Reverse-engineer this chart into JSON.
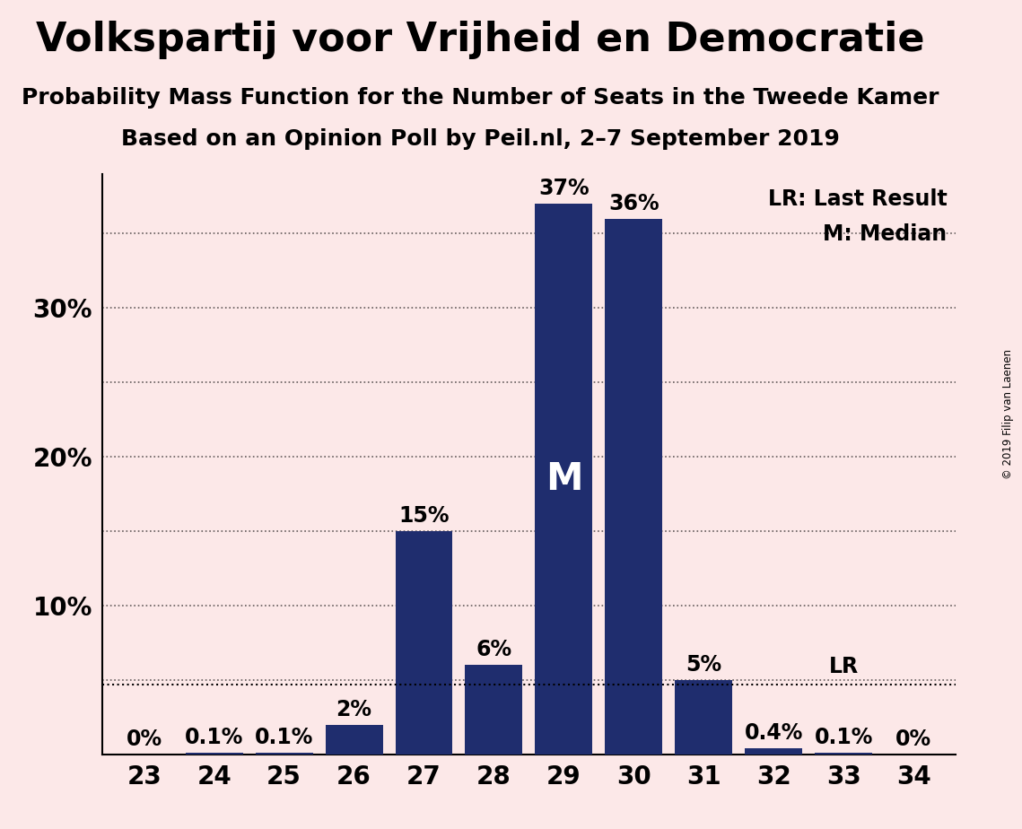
{
  "title": "Volkspartij voor Vrijheid en Democratie",
  "subtitle1": "Probability Mass Function for the Number of Seats in the Tweede Kamer",
  "subtitle2": "Based on an Opinion Poll by Peil.nl, 2–7 September 2019",
  "copyright": "© 2019 Filip van Laenen",
  "categories": [
    23,
    24,
    25,
    26,
    27,
    28,
    29,
    30,
    31,
    32,
    33,
    34
  ],
  "values": [
    0.0,
    0.1,
    0.1,
    2.0,
    15.0,
    6.0,
    37.0,
    36.0,
    5.0,
    0.4,
    0.1,
    0.0
  ],
  "labels": [
    "0%",
    "0.1%",
    "0.1%",
    "2%",
    "15%",
    "6%",
    "37%",
    "36%",
    "5%",
    "0.4%",
    "0.1%",
    "0%"
  ],
  "bar_color": "#1f2d6e",
  "background_color": "#fce8e8",
  "ylim": [
    0,
    39
  ],
  "ylabel_ticks": [
    10,
    20,
    30
  ],
  "ylabel_labels": [
    "10%",
    "20%",
    "30%"
  ],
  "grid_yticks": [
    5,
    10,
    15,
    20,
    25,
    30,
    35
  ],
  "median_seat": 29,
  "lr_value": 4.7,
  "lr_seat": 33,
  "legend_text_lr": "LR: Last Result",
  "legend_text_m": "M: Median",
  "title_fontsize": 32,
  "subtitle_fontsize": 18,
  "label_fontsize": 17,
  "tick_fontsize": 20,
  "median_label_fontsize": 30,
  "bar_width": 0.82
}
